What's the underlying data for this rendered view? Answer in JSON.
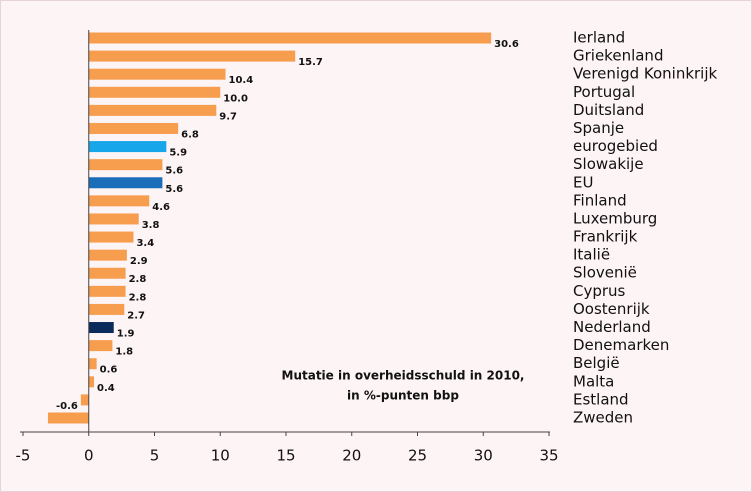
{
  "chart_data": {
    "type": "hbar",
    "annotation": [
      "Mutatie in overheidsschuld in 2010,",
      "in %-punten bbp"
    ],
    "categories": [
      "Ierland",
      "Griekenland",
      "Verenigd Koninkrijk",
      "Portugal",
      "Duitsland",
      "Spanje",
      "eurogebied",
      "Slowakije",
      "EU",
      "Finland",
      "Luxemburg",
      "Frankrijk",
      "Italië",
      "Slovenië",
      "Cyprus",
      "Oostenrijk",
      "Nederland",
      "Denemarken",
      "België",
      "Malta",
      "Estland",
      "Zweden"
    ],
    "values": [
      30.6,
      15.7,
      10.4,
      10.0,
      9.7,
      6.8,
      5.9,
      5.6,
      5.6,
      4.6,
      3.8,
      3.4,
      2.9,
      2.8,
      2.8,
      2.7,
      1.9,
      1.8,
      0.6,
      0.4,
      -0.6,
      -3.1
    ],
    "value_labels": [
      "30.6",
      "15.7",
      "10.4",
      "10.0",
      "9.7",
      "6.8",
      "5.9",
      "5.6",
      "5.6",
      "4.6",
      "3.8",
      "3.4",
      "2.9",
      "2.8",
      "2.8",
      "2.7",
      "1.9",
      "1.8",
      "0.6",
      "0.4",
      "-0.6",
      null
    ],
    "colors": [
      "#f79d4e",
      "#f79d4e",
      "#f79d4e",
      "#f79d4e",
      "#f79d4e",
      "#f79d4e",
      "#17a6ea",
      "#f79d4e",
      "#1a6db8",
      "#f79d4e",
      "#f79d4e",
      "#f79d4e",
      "#f79d4e",
      "#f79d4e",
      "#f79d4e",
      "#f79d4e",
      "#0b2a5c",
      "#f79d4e",
      "#f79d4e",
      "#f79d4e",
      "#f79d4e",
      "#f79d4e"
    ],
    "xlim": [
      -5,
      35
    ],
    "xticks": [
      -5,
      0,
      5,
      10,
      15,
      20,
      25,
      30,
      35
    ]
  }
}
